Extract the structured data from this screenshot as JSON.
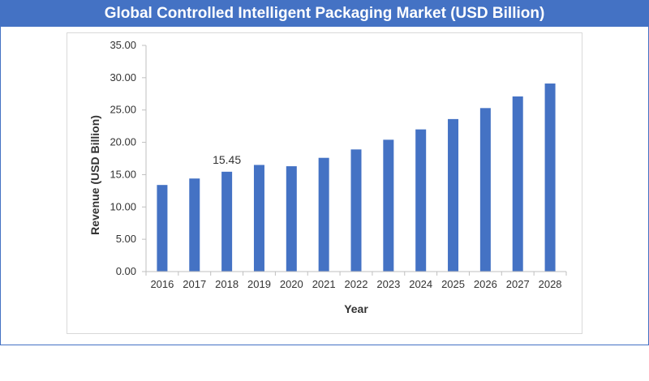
{
  "title": "Global Controlled Intelligent Packaging Market (USD Billion)",
  "colors": {
    "bar": "#4472c4",
    "banner": "#4472c4",
    "axis": "#bfbfbf"
  },
  "chart_data": {
    "type": "bar",
    "title": "Global Controlled Intelligent Packaging Market (USD Billion)",
    "xlabel": "Year",
    "ylabel": "Revenue (USD Billion)",
    "ylim": [
      0,
      35
    ],
    "y_ticks": [
      "0.00",
      "5.00",
      "10.00",
      "15.00",
      "20.00",
      "25.00",
      "30.00",
      "35.00"
    ],
    "y_tick_values": [
      0,
      5,
      10,
      15,
      20,
      25,
      30,
      35
    ],
    "categories": [
      "2016",
      "2017",
      "2018",
      "2019",
      "2020",
      "2021",
      "2022",
      "2023",
      "2024",
      "2025",
      "2026",
      "2027",
      "2028"
    ],
    "values": [
      13.4,
      14.4,
      15.45,
      16.5,
      16.3,
      17.6,
      18.9,
      20.4,
      22.0,
      23.6,
      25.3,
      27.1,
      29.1
    ],
    "data_labels": [
      {
        "category": "2018",
        "text": "15.45"
      }
    ],
    "grid": false,
    "legend": "none"
  }
}
